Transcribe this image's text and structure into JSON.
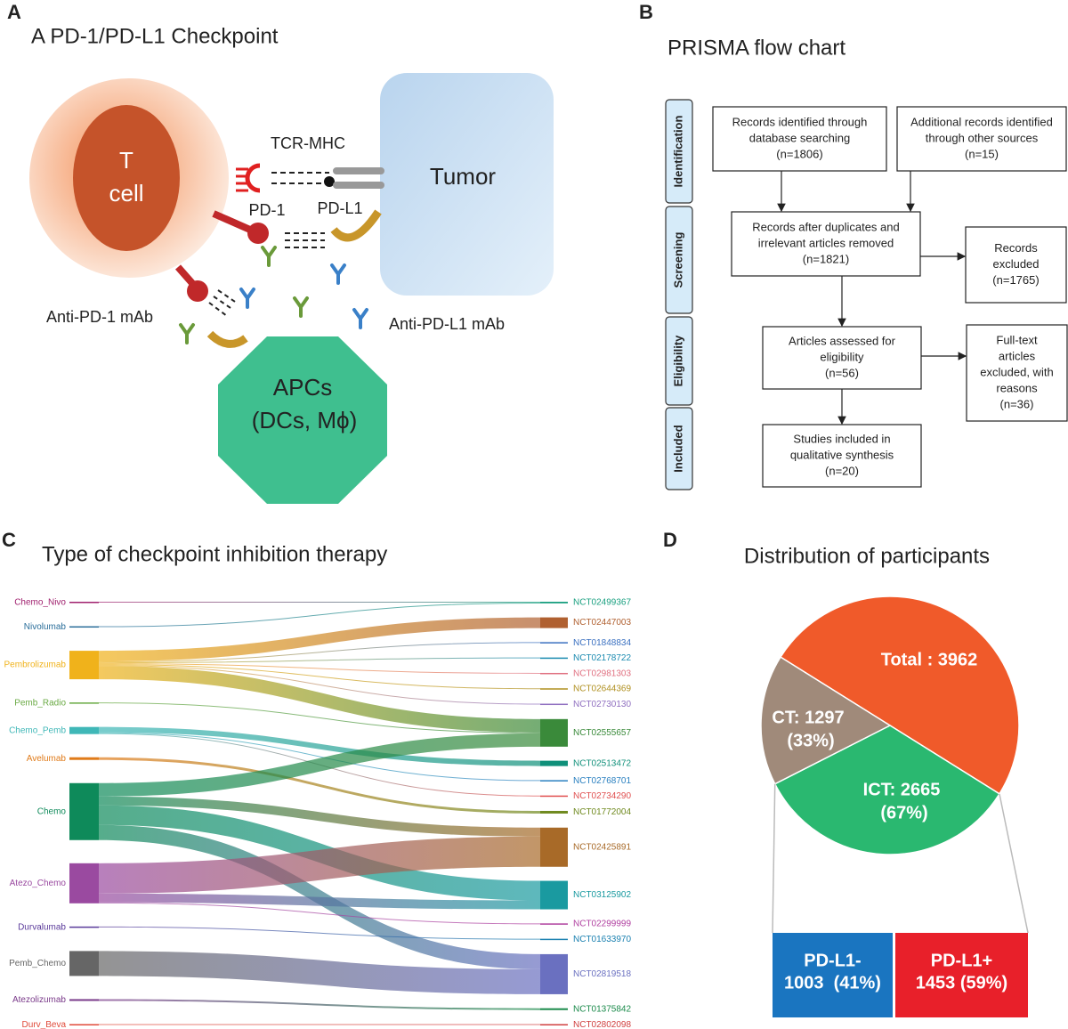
{
  "panel_a": {
    "label": "A",
    "title": "A PD-1/PD-L1 Checkpoint",
    "t_cell": [
      "T",
      "cell"
    ],
    "tumor": "Tumor",
    "tcr_mhc": "TCR-MHC",
    "pd1": "PD-1",
    "pdl1": "PD-L1",
    "anti_pd1": "Anti-PD-1 mAb",
    "anti_pdl1": "Anti-PD-L1 mAb",
    "apcs": [
      "APCs",
      "(DCs, Mϕ)"
    ]
  },
  "panel_b": {
    "label": "B",
    "title": "PRISMA flow chart",
    "stages": [
      "Identification",
      "Screening",
      "Eligibility",
      "Included"
    ],
    "boxes": [
      {
        "lines": [
          "Records identified through",
          "database searching",
          "(n=1806)"
        ]
      },
      {
        "lines": [
          "Additional records identified",
          "through other sources",
          "(n=15)"
        ]
      },
      {
        "lines": [
          "Records after duplicates and",
          "irrelevant articles removed",
          "(n=1821)"
        ]
      },
      {
        "lines": [
          "Records",
          "excluded",
          "(n=1765)"
        ]
      },
      {
        "lines": [
          "Articles assessed for",
          "eligibility",
          "(n=56)"
        ]
      },
      {
        "lines": [
          "Full-text",
          "articles",
          "excluded, with",
          "reasons",
          "(n=36)"
        ]
      },
      {
        "lines": [
          "Studies included in",
          "qualitative synthesis",
          "(n=20)"
        ]
      }
    ]
  },
  "chart_data": [
    {
      "type": "sankey",
      "panel_label": "C",
      "title": "Type of checkpoint inhibition therapy",
      "sources": [
        {
          "name": "Chemo_Nivo",
          "color": "#a0206e"
        },
        {
          "name": "Nivolumab",
          "color": "#2a6e9a"
        },
        {
          "name": "Pembrolizumab",
          "color": "#f0b21b"
        },
        {
          "name": "Pemb_Radio",
          "color": "#6aaa44"
        },
        {
          "name": "Chemo_Pemb",
          "color": "#3fb7b7"
        },
        {
          "name": "Avelumab",
          "color": "#e07b1a"
        },
        {
          "name": "Chemo",
          "color": "#0e8a5a"
        },
        {
          "name": "Atezo_Chemo",
          "color": "#9a4aa0"
        },
        {
          "name": "Durvalumab",
          "color": "#5a3a9a"
        },
        {
          "name": "Pemb_Chemo",
          "color": "#666666"
        },
        {
          "name": "Atezolizumab",
          "color": "#7a3a8a"
        },
        {
          "name": "Durv_Beva",
          "color": "#e04a3a"
        }
      ],
      "targets": [
        {
          "name": "NCT02499367",
          "color": "#1aa080"
        },
        {
          "name": "NCT02447003",
          "color": "#b06030"
        },
        {
          "name": "NCT01848834",
          "color": "#3a70c0"
        },
        {
          "name": "NCT02178722",
          "color": "#1a8ab0"
        },
        {
          "name": "NCT02981303",
          "color": "#e07080"
        },
        {
          "name": "NCT02644369",
          "color": "#b09020"
        },
        {
          "name": "NCT02730130",
          "color": "#9070c0"
        },
        {
          "name": "NCT02555657",
          "color": "#3a8a3a"
        },
        {
          "name": "NCT02513472",
          "color": "#10907a"
        },
        {
          "name": "NCT02768701",
          "color": "#2a80c0"
        },
        {
          "name": "NCT02734290",
          "color": "#e05050"
        },
        {
          "name": "NCT01772004",
          "color": "#708a20"
        },
        {
          "name": "NCT02425891",
          "color": "#a86a28"
        },
        {
          "name": "NCT03125902",
          "color": "#1a9aa0"
        },
        {
          "name": "NCT02299999",
          "color": "#b040a0"
        },
        {
          "name": "NCT01633970",
          "color": "#1a80b0"
        },
        {
          "name": "NCT02819518",
          "color": "#6a70c0"
        },
        {
          "name": "NCT01375842",
          "color": "#1a8a4a"
        },
        {
          "name": "NCT02802098",
          "color": "#d04040"
        }
      ],
      "links": [
        {
          "source": 0,
          "target": 0,
          "value": 10
        },
        {
          "source": 1,
          "target": 0,
          "value": 8
        },
        {
          "source": 2,
          "target": 1,
          "value": 120
        },
        {
          "source": 2,
          "target": 2,
          "value": 10
        },
        {
          "source": 2,
          "target": 3,
          "value": 10
        },
        {
          "source": 2,
          "target": 4,
          "value": 10
        },
        {
          "source": 2,
          "target": 5,
          "value": 10
        },
        {
          "source": 2,
          "target": 6,
          "value": 10
        },
        {
          "source": 2,
          "target": 7,
          "value": 150
        },
        {
          "source": 3,
          "target": 7,
          "value": 10
        },
        {
          "source": 4,
          "target": 8,
          "value": 60
        },
        {
          "source": 4,
          "target": 9,
          "value": 10
        },
        {
          "source": 4,
          "target": 10,
          "value": 10
        },
        {
          "source": 5,
          "target": 11,
          "value": 30
        },
        {
          "source": 6,
          "target": 7,
          "value": 150
        },
        {
          "source": 6,
          "target": 12,
          "value": 100
        },
        {
          "source": 6,
          "target": 13,
          "value": 220
        },
        {
          "source": 6,
          "target": 16,
          "value": 170
        },
        {
          "source": 7,
          "target": 12,
          "value": 340
        },
        {
          "source": 7,
          "target": 13,
          "value": 100
        },
        {
          "source": 7,
          "target": 14,
          "value": 10
        },
        {
          "source": 8,
          "target": 15,
          "value": 10
        },
        {
          "source": 9,
          "target": 16,
          "value": 280
        },
        {
          "source": 10,
          "target": 17,
          "value": 20
        },
        {
          "source": 11,
          "target": 18,
          "value": 5
        }
      ]
    },
    {
      "type": "pie",
      "panel_label": "D",
      "title": "Distribution of participants",
      "values": [
        3962,
        2665,
        1297
      ],
      "value_labels": [
        "Total : 3962",
        "ICT: 2665",
        "CT: 1297"
      ],
      "percent_labels": [
        null,
        "(67%)",
        "(33%)"
      ],
      "colors": [
        "#f05a2a",
        "#2ab870",
        "#a08a7a"
      ],
      "breakdown": [
        {
          "name": "PD-L1-",
          "value": 1003,
          "value_label": "1003  (41%)",
          "color": "#1a75c0"
        },
        {
          "name": "PD-L1+",
          "value": 1453,
          "value_label": "1453 (59%)",
          "color": "#e8202a"
        }
      ]
    }
  ]
}
